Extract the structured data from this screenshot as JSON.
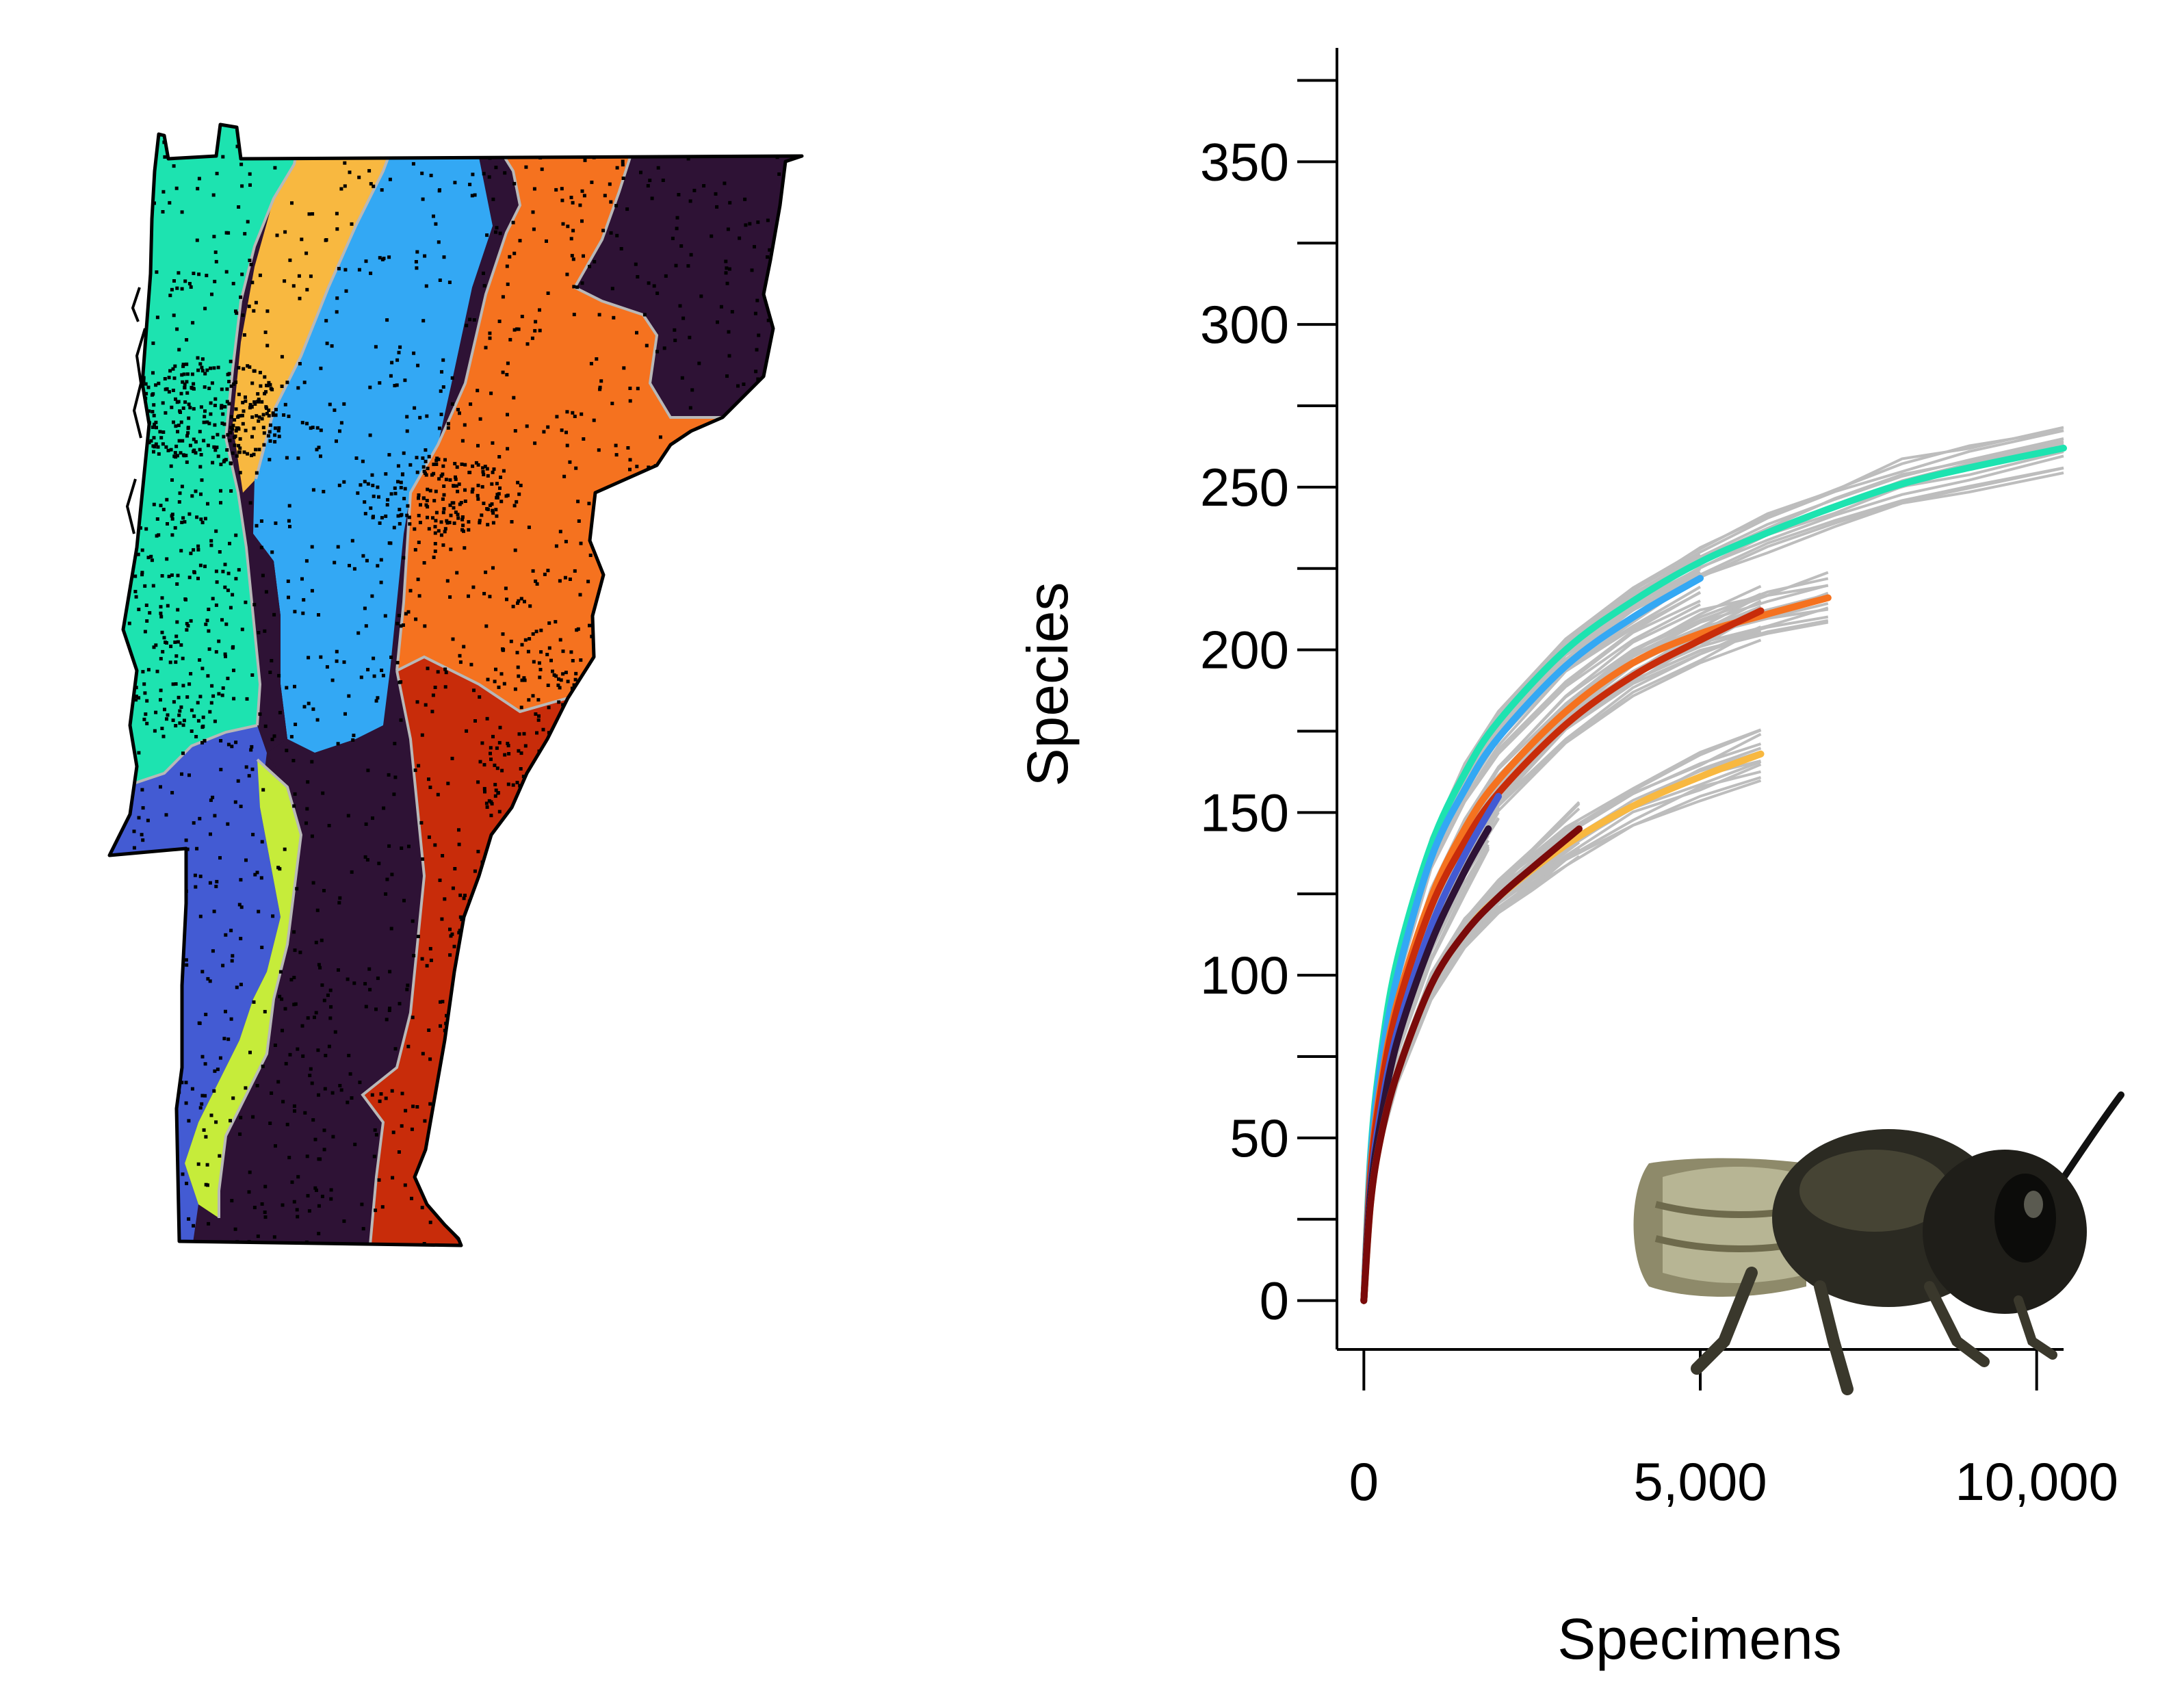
{
  "map": {
    "regions": [
      {
        "name": "region-teal",
        "color": "#1de3b0"
      },
      {
        "name": "region-yellow",
        "color": "#f8b840"
      },
      {
        "name": "region-sky",
        "color": "#33a8f4"
      },
      {
        "name": "region-orange",
        "color": "#f5721f"
      },
      {
        "name": "region-dark",
        "color": "#2e1235"
      },
      {
        "name": "region-red",
        "color": "#c82c0a"
      },
      {
        "name": "region-blue",
        "color": "#435bd3"
      },
      {
        "name": "region-lime",
        "color": "#c6ec3a"
      }
    ],
    "outline_color": "#000000",
    "boundary_color": "#b8b8b8",
    "points_color": "#000000"
  },
  "chart_data": {
    "type": "line",
    "xlabel": "Specimens",
    "ylabel": "Species",
    "xlim": [
      -400,
      10400
    ],
    "ylim": [
      -15,
      385
    ],
    "x_ticks": [
      0,
      5000,
      10000
    ],
    "x_tick_labels": [
      "0",
      "5,000",
      "10,000"
    ],
    "y_ticks": [
      0,
      50,
      100,
      150,
      200,
      250,
      300,
      350
    ],
    "y_minor_ticks": [
      25,
      75,
      125,
      175,
      225,
      275,
      325,
      375
    ],
    "envelope_color": "#bdbdbd",
    "series": [
      {
        "color": "#1de3b0",
        "x": [
          0,
          100,
          250,
          500,
          1000,
          1500,
          2000,
          3000,
          4000,
          5000,
          6000,
          7000,
          8000,
          9000,
          10400
        ],
        "y": [
          0,
          45,
          75,
          105,
          140,
          162,
          178,
          200,
          215,
          227,
          236,
          244,
          251,
          256,
          262
        ]
      },
      {
        "color": "#33a8f4",
        "x": [
          0,
          100,
          250,
          500,
          1000,
          1500,
          2000,
          3000,
          4000,
          5000
        ],
        "y": [
          0,
          43,
          72,
          100,
          136,
          157,
          173,
          195,
          210,
          222
        ]
      },
      {
        "color": "#f5721f",
        "x": [
          0,
          100,
          250,
          500,
          1000,
          1500,
          2000,
          3000,
          4000,
          5000,
          6000,
          6900
        ],
        "y": [
          0,
          40,
          66,
          92,
          124,
          145,
          160,
          181,
          196,
          205,
          211,
          216
        ]
      },
      {
        "color": "#c82c0a",
        "x": [
          0,
          100,
          250,
          500,
          1000,
          1500,
          2000,
          3000,
          4000,
          5000,
          5900
        ],
        "y": [
          0,
          38,
          64,
          90,
          121,
          141,
          156,
          177,
          192,
          203,
          212
        ]
      },
      {
        "color": "#435bd3",
        "x": [
          0,
          100,
          250,
          500,
          1000,
          1500,
          2000
        ],
        "y": [
          0,
          35,
          58,
          83,
          115,
          137,
          155
        ]
      },
      {
        "color": "#2e1235",
        "x": [
          0,
          100,
          250,
          500,
          1000,
          1500,
          1850
        ],
        "y": [
          0,
          33,
          55,
          80,
          110,
          132,
          145
        ]
      },
      {
        "color": "#f8b840",
        "x": [
          0,
          100,
          250,
          500,
          1000,
          1500,
          2000,
          3000,
          4000,
          5000,
          5900
        ],
        "y": [
          0,
          30,
          50,
          70,
          97,
          113,
          124,
          140,
          152,
          161,
          168
        ]
      },
      {
        "color": "#7a0a0a",
        "x": [
          0,
          100,
          250,
          500,
          1000,
          1500,
          2000,
          2500,
          3200
        ],
        "y": [
          0,
          30,
          50,
          70,
          97,
          113,
          124,
          133,
          145
        ]
      }
    ]
  },
  "bee_photo": {
    "icon": "bee-photo"
  }
}
